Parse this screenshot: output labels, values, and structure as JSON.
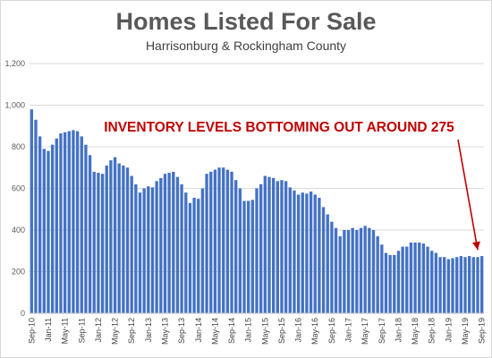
{
  "chart_data": {
    "type": "bar",
    "title": "Homes Listed For Sale",
    "subtitle": "Harrisonburg & Rockingham County",
    "xlabel": "",
    "ylabel": "",
    "ylim": [
      0,
      1200
    ],
    "yticks": [
      "0",
      "200",
      "400",
      "600",
      "800",
      "1,000",
      "1,200"
    ],
    "grid": "horizontal",
    "bar_color": "#4472c4",
    "annotation": {
      "text": "INVENTORY LEVELS BOTTOMING OUT AROUND 275",
      "color": "#c00000",
      "points_to": "Aug-19"
    },
    "x_tick_labels": [
      "Sep-10",
      "Jan-11",
      "May-11",
      "Sep-11",
      "Jan-12",
      "May-12",
      "Sep-12",
      "Jan-13",
      "May-13",
      "Sep-13",
      "Jan-14",
      "May-14",
      "Sep-14",
      "Jan-15",
      "May-15",
      "Sep-15",
      "Jan-16",
      "May-16",
      "Sep-16",
      "Jan-17",
      "May-17",
      "Sep-17",
      "Jan-18",
      "May-18",
      "Sep-18",
      "Jan-19",
      "May-19",
      "Sep-19"
    ],
    "categories": [
      "Sep-10",
      "Oct-10",
      "Nov-10",
      "Dec-10",
      "Jan-11",
      "Feb-11",
      "Mar-11",
      "Apr-11",
      "May-11",
      "Jun-11",
      "Jul-11",
      "Aug-11",
      "Sep-11",
      "Oct-11",
      "Nov-11",
      "Dec-11",
      "Jan-12",
      "Feb-12",
      "Mar-12",
      "Apr-12",
      "May-12",
      "Jun-12",
      "Jul-12",
      "Aug-12",
      "Sep-12",
      "Oct-12",
      "Nov-12",
      "Dec-12",
      "Jan-13",
      "Feb-13",
      "Mar-13",
      "Apr-13",
      "May-13",
      "Jun-13",
      "Jul-13",
      "Aug-13",
      "Sep-13",
      "Oct-13",
      "Nov-13",
      "Dec-13",
      "Jan-14",
      "Feb-14",
      "Mar-14",
      "Apr-14",
      "May-14",
      "Jun-14",
      "Jul-14",
      "Aug-14",
      "Sep-14",
      "Oct-14",
      "Nov-14",
      "Dec-14",
      "Jan-15",
      "Feb-15",
      "Mar-15",
      "Apr-15",
      "May-15",
      "Jun-15",
      "Jul-15",
      "Aug-15",
      "Sep-15",
      "Oct-15",
      "Nov-15",
      "Dec-15",
      "Jan-16",
      "Feb-16",
      "Mar-16",
      "Apr-16",
      "May-16",
      "Jun-16",
      "Jul-16",
      "Aug-16",
      "Sep-16",
      "Oct-16",
      "Nov-16",
      "Dec-16",
      "Jan-17",
      "Feb-17",
      "Mar-17",
      "Apr-17",
      "May-17",
      "Jun-17",
      "Jul-17",
      "Aug-17",
      "Sep-17",
      "Oct-17",
      "Nov-17",
      "Dec-17",
      "Jan-18",
      "Feb-18",
      "Mar-18",
      "Apr-18",
      "May-18",
      "Jun-18",
      "Jul-18",
      "Aug-18",
      "Sep-18",
      "Oct-18",
      "Nov-18",
      "Dec-18",
      "Jan-19",
      "Feb-19",
      "Mar-19",
      "Apr-19",
      "May-19",
      "Jun-19",
      "Jul-19",
      "Aug-19",
      "Sep-19"
    ],
    "values": [
      980,
      930,
      850,
      790,
      780,
      810,
      840,
      865,
      870,
      875,
      880,
      875,
      850,
      810,
      760,
      680,
      675,
      670,
      710,
      735,
      750,
      720,
      710,
      700,
      660,
      620,
      580,
      600,
      610,
      605,
      635,
      650,
      670,
      675,
      680,
      655,
      620,
      580,
      530,
      555,
      550,
      600,
      670,
      680,
      690,
      700,
      700,
      690,
      680,
      640,
      600,
      540,
      540,
      545,
      600,
      620,
      660,
      655,
      650,
      635,
      640,
      635,
      605,
      590,
      570,
      580,
      575,
      585,
      570,
      555,
      510,
      475,
      440,
      410,
      370,
      400,
      400,
      410,
      400,
      410,
      420,
      410,
      400,
      370,
      330,
      290,
      280,
      280,
      300,
      320,
      320,
      340,
      340,
      340,
      335,
      320,
      300,
      290,
      270,
      270,
      260,
      265,
      270,
      275,
      270,
      275,
      270,
      270,
      275
    ]
  }
}
